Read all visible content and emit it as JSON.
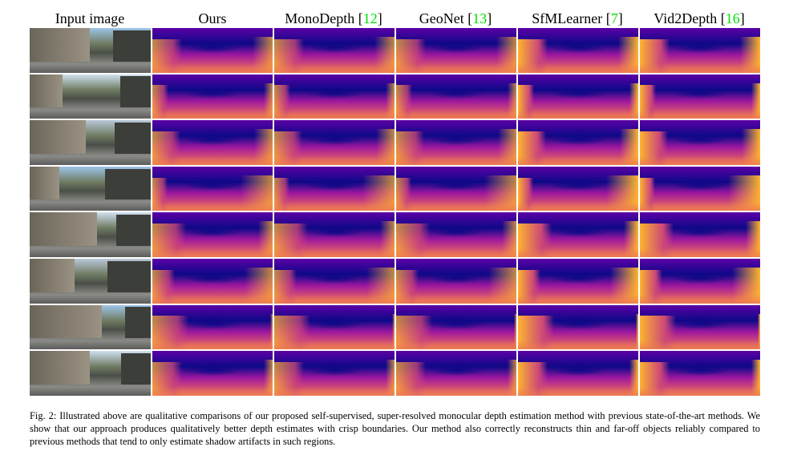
{
  "figure": {
    "columns": [
      {
        "label": "Input image",
        "cite": ""
      },
      {
        "label": "Ours",
        "cite": ""
      },
      {
        "label": "MonoDepth",
        "cite": "12"
      },
      {
        "label": "GeoNet",
        "cite": "13"
      },
      {
        "label": "SfMLearner",
        "cite": "7"
      },
      {
        "label": "Vid2Depth",
        "cite": "16"
      }
    ],
    "row_count": 8,
    "colormap": [
      "#0d0887",
      "#5c01a6",
      "#9c179e",
      "#cc4778",
      "#ed7953",
      "#fdb42f",
      "#f0f921"
    ],
    "cite_color": "#00e000",
    "caption": "Fig. 2: Illustrated above are qualitative comparisons of our proposed self-supervised, super-resolved monocular depth estimation method with previous state-of-the-art methods. We show that our approach produces qualitatively better depth estimates with crisp boundaries. Our method also correctly reconstructs thin and far-off objects reliably compared to previous methods that tend to only estimate shadow artifacts in such regions."
  }
}
